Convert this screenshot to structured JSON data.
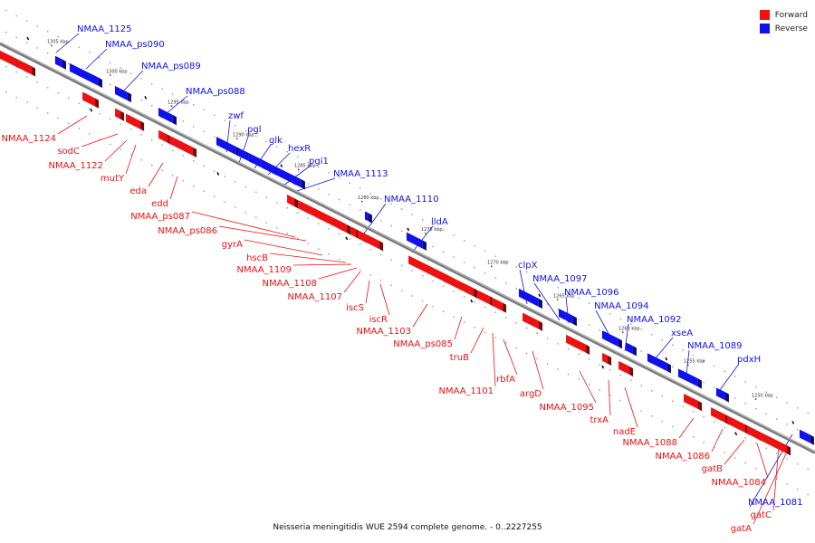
{
  "caption": "Neisseria meningitidis WUE 2594 complete genome. - 0..2227255",
  "legend": [
    {
      "label": "Forward",
      "color": "#ee1111"
    },
    {
      "label": "Reverse",
      "color": "#1111ee"
    }
  ],
  "colors": {
    "forward": "#ee1111",
    "reverse": "#1111ee",
    "backbone": "#777777",
    "ticks": "#999999"
  },
  "ticks": [
    "1305 kbp",
    "1300 kbp",
    "1295 kbp",
    "1290 kbp",
    "1285 kbp",
    "1280 kbp",
    "1275 kbp",
    "1270 kbp",
    "1265 kbp",
    "1260 kbp",
    "1255 kbp",
    "1250 kbp"
  ],
  "genes": {
    "reverse": [
      "NMAA_1125",
      "NMAA_ps090",
      "NMAA_ps089",
      "NMAA_ps088",
      "zwf",
      "pgl",
      "glk",
      "hexR",
      "pgi1",
      "NMAA_1113",
      "NMAA_1110",
      "lldA",
      "clpX",
      "NMAA_1097",
      "NMAA_1096",
      "NMAA_1094",
      "NMAA_1092",
      "xseA",
      "NMAA_1089",
      "pdxH",
      "NMAA_1081"
    ],
    "forward": [
      "NMAA_1124",
      "sodC",
      "NMAA_1122",
      "mutY",
      "eda",
      "edd",
      "NMAA_ps087",
      "NMAA_ps086",
      "gyrA",
      "hscB",
      "NMAA_1109",
      "NMAA_1108",
      "NMAA_1107",
      "iscS",
      "iscR",
      "NMAA_1103",
      "NMAA_ps085",
      "truB",
      "NMAA_1101",
      "rbfA",
      "argD",
      "NMAA_1095",
      "trxA",
      "nadE",
      "NMAA_1088",
      "NMAA_1086",
      "gatB",
      "NMAA_1084",
      "gatC",
      "gatA"
    ]
  }
}
